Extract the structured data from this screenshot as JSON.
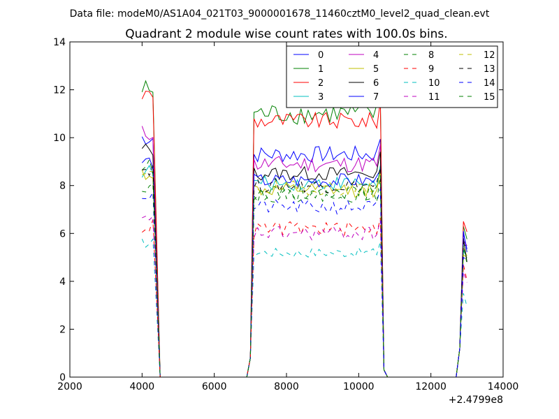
{
  "chart_data": {
    "type": "line",
    "suptitle": "Data file: modeM0/AS1A04_021T03_9000001678_11460cztM0_level2_quad_clean.evt",
    "title": "Quadrant 2 module wise count rates with 100.0s bins.",
    "xlabel": "",
    "ylabel": "",
    "x_offset_label": "+2.4799e8",
    "xlim": [
      2000,
      14000
    ],
    "ylim": [
      0,
      14
    ],
    "xticks": [
      "2000",
      "4000",
      "6000",
      "8000",
      "10000",
      "12000",
      "14000"
    ],
    "yticks": [
      "0",
      "2",
      "4",
      "6",
      "8",
      "10",
      "12",
      "14"
    ],
    "grid": false,
    "legend_position": "top-right",
    "legend_columns": 4,
    "segments": [
      {
        "start": 4000,
        "end": 4500
      },
      {
        "start": 6900,
        "end": 10700
      },
      {
        "start": 12800,
        "end": 13000
      }
    ],
    "series": [
      {
        "name": "0",
        "color": "#0000ff",
        "dash": "solid",
        "level": 9.3,
        "amp": 0.35,
        "start_level": 10.0,
        "tail_level": 5.5
      },
      {
        "name": "1",
        "color": "#008000",
        "dash": "solid",
        "level": 11.0,
        "amp": 0.45,
        "start_level": 12.0,
        "tail_level": 5.8
      },
      {
        "name": "2",
        "color": "#ff0000",
        "dash": "solid",
        "level": 10.7,
        "amp": 0.35,
        "start_level": 11.8,
        "tail_level": 6.0
      },
      {
        "name": "3",
        "color": "#00bfbf",
        "dash": "solid",
        "level": 8.1,
        "amp": 0.3,
        "start_level": 8.6,
        "tail_level": 4.8
      },
      {
        "name": "4",
        "color": "#bf00bf",
        "dash": "solid",
        "level": 8.9,
        "amp": 0.35,
        "start_level": 10.2,
        "tail_level": 5.2
      },
      {
        "name": "5",
        "color": "#bfbf00",
        "dash": "solid",
        "level": 7.8,
        "amp": 0.3,
        "start_level": 8.5,
        "tail_level": 4.6
      },
      {
        "name": "6",
        "color": "#000000",
        "dash": "solid",
        "level": 8.5,
        "amp": 0.3,
        "start_level": 9.5,
        "tail_level": 5.3
      },
      {
        "name": "7",
        "color": "#0000ff",
        "dash": "solid",
        "level": 8.2,
        "amp": 0.3,
        "start_level": 9.0,
        "tail_level": 5.6
      },
      {
        "name": "8",
        "color": "#008000",
        "dash": "dashed",
        "level": 7.7,
        "amp": 0.3,
        "start_level": 8.8,
        "tail_level": 5.0
      },
      {
        "name": "9",
        "color": "#ff0000",
        "dash": "dashed",
        "level": 6.2,
        "amp": 0.3,
        "start_level": 6.3,
        "tail_level": 4.2
      },
      {
        "name": "10",
        "color": "#00bfbf",
        "dash": "dashed",
        "level": 5.2,
        "amp": 0.2,
        "start_level": 5.6,
        "tail_level": 3.0
      },
      {
        "name": "11",
        "color": "#bf00bf",
        "dash": "dashed",
        "level": 6.0,
        "amp": 0.3,
        "start_level": 6.5,
        "tail_level": 3.9
      },
      {
        "name": "12",
        "color": "#bfbf00",
        "dash": "dashed",
        "level": 7.9,
        "amp": 0.3,
        "start_level": 8.4,
        "tail_level": 4.9
      },
      {
        "name": "13",
        "color": "#000000",
        "dash": "dashed",
        "level": 8.0,
        "amp": 0.3,
        "start_level": 8.7,
        "tail_level": 5.1
      },
      {
        "name": "14",
        "color": "#0000ff",
        "dash": "dashed",
        "level": 7.1,
        "amp": 0.3,
        "start_level": 7.6,
        "tail_level": 4.5
      },
      {
        "name": "15",
        "color": "#008000",
        "dash": "dashed",
        "level": 7.6,
        "amp": 0.3,
        "start_level": 8.0,
        "tail_level": 4.8
      }
    ]
  }
}
